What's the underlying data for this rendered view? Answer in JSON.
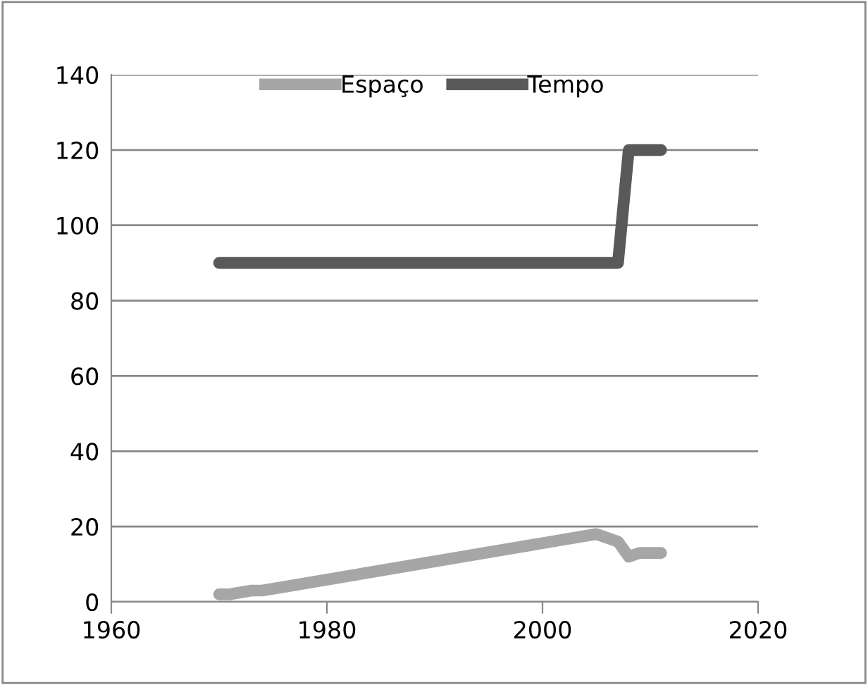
{
  "chart_data": {
    "type": "line",
    "series": [
      {
        "name": "Espaço",
        "color": "#a6a6a6",
        "x": [
          1970,
          1971,
          1973,
          1974,
          2005,
          2007,
          2008,
          2009,
          2011
        ],
        "values": [
          2,
          2,
          3,
          3,
          18,
          16,
          12,
          13,
          13
        ]
      },
      {
        "name": "Tempo",
        "color": "#595959",
        "x": [
          1970,
          2007,
          2008,
          2011
        ],
        "values": [
          90,
          90,
          120,
          120
        ]
      }
    ],
    "xlim": [
      1960,
      2020
    ],
    "xticks": [
      1960,
      1980,
      2000,
      2020
    ],
    "ylim": [
      0,
      140
    ],
    "yticks": [
      0,
      20,
      40,
      60,
      80,
      100,
      120,
      140
    ],
    "grid": "y",
    "legend": "top",
    "marker": "none",
    "line_style": "solid"
  }
}
